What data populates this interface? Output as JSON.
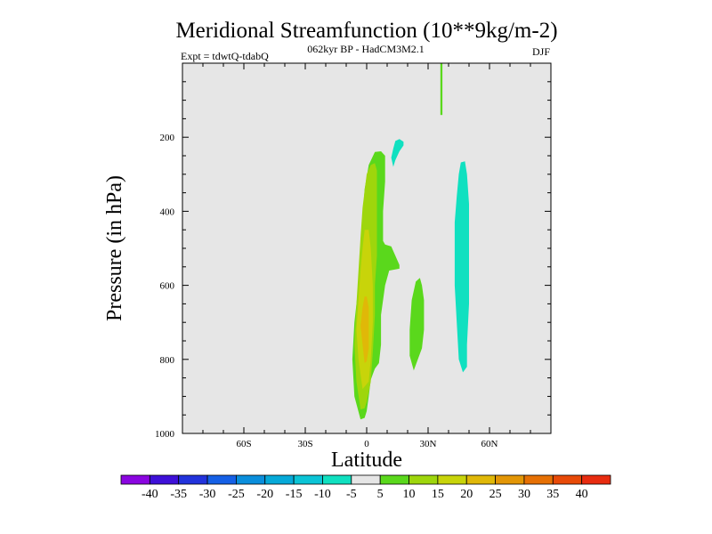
{
  "chart_data": {
    "type": "contour",
    "title": "Meridional Streamfunction (10**9kg/m-2)",
    "subtitle_left": "Expt = tdwtQ-tdabQ",
    "subtitle_center": "062kyr BP - HadCM3M2.1",
    "subtitle_right": "DJF",
    "xlabel": "Latitude",
    "ylabel": "Pressure (in hPa)",
    "xlim": [
      -90,
      90
    ],
    "ylim": [
      1000,
      0
    ],
    "xticks": [
      {
        "value": -60,
        "label": "60S"
      },
      {
        "value": -30,
        "label": "30S"
      },
      {
        "value": 0,
        "label": "0"
      },
      {
        "value": 30,
        "label": "30N"
      },
      {
        "value": 60,
        "label": "60N"
      }
    ],
    "yticks": [
      {
        "value": 200,
        "label": "200"
      },
      {
        "value": 400,
        "label": "400"
      },
      {
        "value": 600,
        "label": "600"
      },
      {
        "value": 800,
        "label": "800"
      },
      {
        "value": 1000,
        "label": "1000"
      }
    ],
    "background_color": "#e6e6e6",
    "colorbar": {
      "labels": [
        "-40",
        "-35",
        "-30",
        "-25",
        "-20",
        "-15",
        "-10",
        "-5",
        "5",
        "10",
        "15",
        "20",
        "25",
        "30",
        "35",
        "40"
      ],
      "colors": [
        "#8a05e0",
        "#3e10d8",
        "#2233dc",
        "#1560e6",
        "#0a8edc",
        "#06a9d8",
        "#0bc4d6",
        "#10e0c0",
        "#e6e6e6",
        "#5ad81c",
        "#9ed60c",
        "#c8d40a",
        "#e0b808",
        "#e39606",
        "#e67004",
        "#e84a08",
        "#e82c10"
      ]
    },
    "regions": [
      {
        "name": "positive-5-10-band",
        "level": "5 to 10",
        "color": "#5ad81c",
        "points": [
          [
            -3,
            962
          ],
          [
            -6,
            900
          ],
          [
            -7,
            800
          ],
          [
            -6,
            700
          ],
          [
            -4,
            600
          ],
          [
            -3,
            500
          ],
          [
            -2,
            420
          ],
          [
            -1,
            340
          ],
          [
            1,
            275
          ],
          [
            4,
            240
          ],
          [
            7,
            238
          ],
          [
            9,
            250
          ],
          [
            9,
            320
          ],
          [
            8,
            400
          ],
          [
            8,
            480
          ],
          [
            9,
            490
          ],
          [
            12,
            495
          ],
          [
            14,
            520
          ],
          [
            16,
            545
          ],
          [
            16,
            555
          ],
          [
            11,
            560
          ],
          [
            9,
            600
          ],
          [
            7,
            680
          ],
          [
            7,
            760
          ],
          [
            6,
            810
          ],
          [
            4,
            825
          ],
          [
            3,
            840
          ],
          [
            2,
            855
          ],
          [
            1,
            900
          ],
          [
            0,
            940
          ],
          [
            -1,
            958
          ]
        ]
      },
      {
        "name": "positive-10-15-band",
        "level": "10 to 15",
        "color": "#9ed60c",
        "points": [
          [
            -3,
            935
          ],
          [
            -5,
            860
          ],
          [
            -6,
            760
          ],
          [
            -5,
            650
          ],
          [
            -4,
            560
          ],
          [
            -3,
            470
          ],
          [
            -2,
            390
          ],
          [
            0,
            300
          ],
          [
            2,
            275
          ],
          [
            4,
            270
          ],
          [
            5,
            290
          ],
          [
            5,
            360
          ],
          [
            5,
            440
          ],
          [
            5,
            520
          ],
          [
            4,
            600
          ],
          [
            4,
            680
          ],
          [
            3,
            780
          ],
          [
            2,
            860
          ],
          [
            0,
            915
          ],
          [
            -1,
            932
          ]
        ]
      },
      {
        "name": "positive-15-20-band",
        "level": "15 to 20",
        "color": "#c8d40a",
        "points": [
          [
            -2,
            880
          ],
          [
            -4,
            800
          ],
          [
            -5,
            720
          ],
          [
            -4,
            640
          ],
          [
            -3,
            560
          ],
          [
            -2,
            500
          ],
          [
            -1,
            450
          ],
          [
            1,
            450
          ],
          [
            2,
            500
          ],
          [
            3,
            600
          ],
          [
            3,
            700
          ],
          [
            2,
            800
          ],
          [
            1,
            860
          ]
        ]
      },
      {
        "name": "positive-20-25-band",
        "level": "20 to 25",
        "color": "#e0b808",
        "points": [
          [
            -1,
            810
          ],
          [
            -2,
            760
          ],
          [
            -3,
            710
          ],
          [
            -2,
            660
          ],
          [
            -1,
            630
          ],
          [
            0,
            630
          ],
          [
            1,
            660
          ],
          [
            1,
            720
          ],
          [
            1,
            770
          ],
          [
            0,
            805
          ]
        ]
      },
      {
        "name": "positive-midlat-cell",
        "level": "5 to 10",
        "color": "#5ad81c",
        "points": [
          [
            23,
            830
          ],
          [
            21,
            790
          ],
          [
            21,
            720
          ],
          [
            22,
            640
          ],
          [
            24,
            590
          ],
          [
            26,
            580
          ],
          [
            27,
            600
          ],
          [
            28,
            640
          ],
          [
            28,
            720
          ],
          [
            27,
            770
          ],
          [
            25,
            800
          ]
        ]
      },
      {
        "name": "negative-upper-cell",
        "level": "-10 to -5",
        "color": "#10e0c0",
        "points": [
          [
            13,
            280
          ],
          [
            12,
            255
          ],
          [
            13,
            230
          ],
          [
            14,
            210
          ],
          [
            16,
            205
          ],
          [
            18,
            212
          ],
          [
            18,
            222
          ],
          [
            16,
            238
          ],
          [
            14,
            262
          ]
        ]
      },
      {
        "name": "negative-midlat-cell",
        "level": "-10 to -5",
        "color": "#10e0c0",
        "points": [
          [
            47,
            835
          ],
          [
            45,
            800
          ],
          [
            44,
            700
          ],
          [
            43,
            600
          ],
          [
            43,
            500
          ],
          [
            43,
            430
          ],
          [
            44,
            360
          ],
          [
            45,
            300
          ],
          [
            46,
            268
          ],
          [
            48,
            265
          ],
          [
            49,
            300
          ],
          [
            50,
            380
          ],
          [
            50,
            460
          ],
          [
            50,
            560
          ],
          [
            50,
            650
          ],
          [
            49,
            760
          ],
          [
            49,
            820
          ]
        ]
      },
      {
        "name": "positive-stratospheric-streak",
        "level": "5 to 10",
        "color": "#5ad81c",
        "points": [
          [
            36,
            0
          ],
          [
            37,
            0
          ],
          [
            37,
            140
          ],
          [
            36,
            140
          ]
        ]
      }
    ]
  }
}
